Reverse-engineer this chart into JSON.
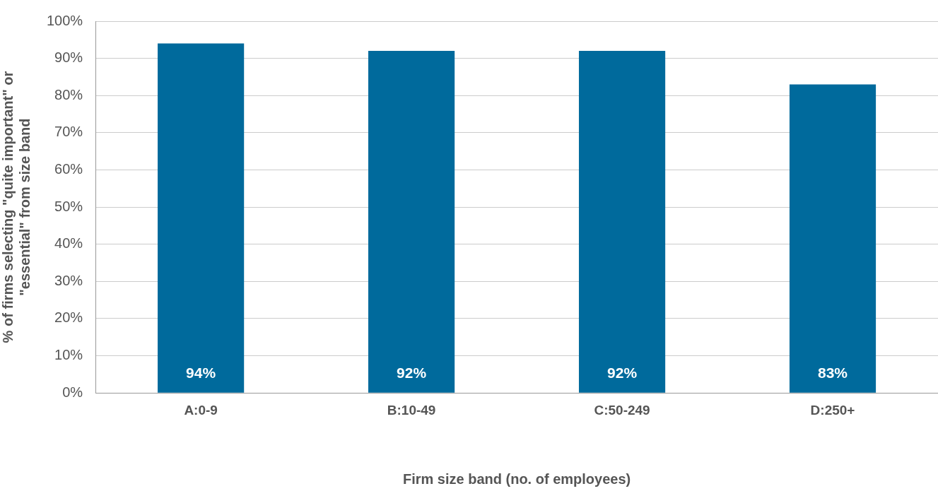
{
  "chart_data": {
    "type": "bar",
    "xlabel": "Firm size band (no. of employees)",
    "ylabel": "% of firms selecting \"quite important\" or\n\"essential\" from size band",
    "categories": [
      "A:0-9",
      "B:10-49",
      "C:50-249",
      "D:250+"
    ],
    "values": [
      94,
      92,
      92,
      83
    ],
    "value_labels": [
      "94%",
      "92%",
      "92%",
      "83%"
    ],
    "color": "#006a9c",
    "ylim": [
      0,
      100
    ],
    "yticks": [
      {
        "value": 0,
        "label": "0%"
      },
      {
        "value": 10,
        "label": "10%"
      },
      {
        "value": 20,
        "label": "20%"
      },
      {
        "value": 30,
        "label": "30%"
      },
      {
        "value": 40,
        "label": "40%"
      },
      {
        "value": 50,
        "label": "50%"
      },
      {
        "value": 60,
        "label": "60%"
      },
      {
        "value": 70,
        "label": "70%"
      },
      {
        "value": 80,
        "label": "80%"
      },
      {
        "value": 90,
        "label": "90%"
      },
      {
        "value": 100,
        "label": "100%"
      }
    ],
    "grid": "y",
    "legend": false
  }
}
